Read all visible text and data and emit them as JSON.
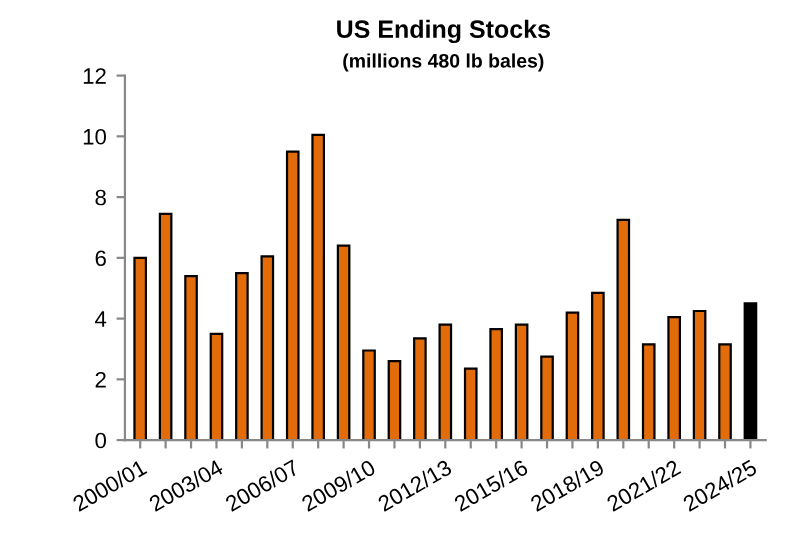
{
  "chart_data": {
    "type": "bar",
    "title": "US Ending Stocks",
    "subtitle": "(millions 480 lb bales)",
    "categories": [
      "2000/01",
      null,
      null,
      "2003/04",
      null,
      null,
      "2006/07",
      null,
      null,
      "2009/10",
      null,
      null,
      "2012/13",
      null,
      null,
      "2015/16",
      null,
      null,
      "2018/19",
      null,
      null,
      "2021/22",
      null,
      null,
      "2024/25"
    ],
    "values": [
      6.0,
      7.45,
      5.4,
      3.5,
      5.5,
      6.05,
      9.5,
      10.05,
      6.4,
      2.95,
      2.6,
      3.35,
      3.8,
      2.35,
      3.65,
      3.8,
      2.75,
      4.2,
      4.85,
      7.25,
      3.15,
      4.05,
      4.25,
      3.15,
      4.5
    ],
    "colors": [
      "#e36c0a",
      "#e36c0a",
      "#e36c0a",
      "#e36c0a",
      "#e36c0a",
      "#e36c0a",
      "#e36c0a",
      "#e36c0a",
      "#e36c0a",
      "#e36c0a",
      "#e36c0a",
      "#e36c0a",
      "#e36c0a",
      "#e36c0a",
      "#e36c0a",
      "#e36c0a",
      "#e36c0a",
      "#e36c0a",
      "#e36c0a",
      "#e36c0a",
      "#e36c0a",
      "#e36c0a",
      "#e36c0a",
      "#e36c0a",
      "#000000"
    ],
    "ylim": [
      0,
      12
    ],
    "yticks": [
      0,
      2,
      4,
      6,
      8,
      10,
      12
    ],
    "grid": false,
    "legend": false
  }
}
